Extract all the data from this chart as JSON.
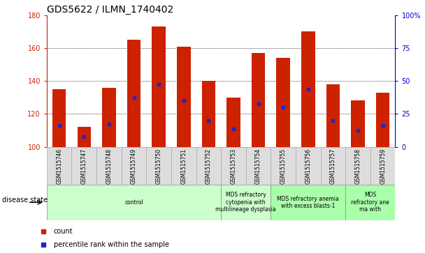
{
  "title": "GDS5622 / ILMN_1740402",
  "samples": [
    "GSM1515746",
    "GSM1515747",
    "GSM1515748",
    "GSM1515749",
    "GSM1515750",
    "GSM1515751",
    "GSM1515752",
    "GSM1515753",
    "GSM1515754",
    "GSM1515755",
    "GSM1515756",
    "GSM1515757",
    "GSM1515758",
    "GSM1515759"
  ],
  "bar_tops": [
    135,
    112,
    136,
    165,
    173,
    161,
    140,
    130,
    157,
    154,
    170,
    138,
    128,
    133
  ],
  "bar_base": 100,
  "blue_positions": [
    113,
    106,
    114,
    130,
    138,
    128,
    116,
    111,
    126,
    124,
    135,
    116,
    110,
    113
  ],
  "ylim_left": [
    100,
    180
  ],
  "ylim_right": [
    0,
    100
  ],
  "yticks_left": [
    100,
    120,
    140,
    160,
    180
  ],
  "yticks_right": [
    0,
    25,
    50,
    75,
    100
  ],
  "ytick_labels_right": [
    "0",
    "25",
    "50",
    "75",
    "100%"
  ],
  "bar_color": "#cc2200",
  "blue_color": "#2222cc",
  "bar_width": 0.55,
  "group_defs": [
    {
      "start": 0,
      "end": 7,
      "label": "control",
      "color": "#ccffcc"
    },
    {
      "start": 7,
      "end": 9,
      "label": "MDS refractory\ncytopenia with\nmultilineage dysplasia",
      "color": "#ccffcc"
    },
    {
      "start": 9,
      "end": 12,
      "label": "MDS refractory anemia\nwith excess blasts-1",
      "color": "#aaffaa"
    },
    {
      "start": 12,
      "end": 14,
      "label": "MDS\nrefractory ane\nma with",
      "color": "#aaffaa"
    }
  ],
  "disease_state_label": "disease state",
  "left_tick_color": "#cc2200",
  "right_tick_color": "#0000cc",
  "title_fontsize": 10,
  "tick_fontsize": 7,
  "sample_fontsize": 5.5,
  "legend_fontsize": 7,
  "bg_color": "#ffffff"
}
